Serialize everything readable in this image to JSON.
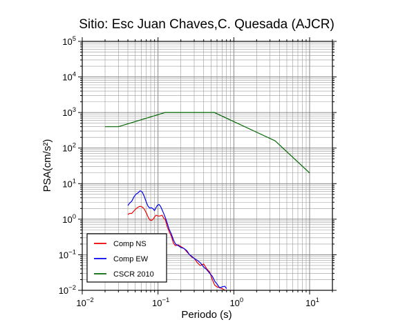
{
  "chart_data": {
    "type": "line",
    "title": "Sitio: Esc Juan Chaves,C. Quesada (AJCR)",
    "xlabel": "Periodo (s)",
    "ylabel": "PSA(cm/s²)",
    "x_scale": "log",
    "y_scale": "log",
    "xlim": [
      0.01,
      20
    ],
    "ylim": [
      0.01,
      100000
    ],
    "grid": true,
    "legend_position": "bottom-left",
    "x_ticks": [
      {
        "value": 0.01,
        "base": "10",
        "exp": "−2"
      },
      {
        "value": 0.1,
        "base": "10",
        "exp": "−1"
      },
      {
        "value": 1,
        "base": "10",
        "exp": "0"
      },
      {
        "value": 10,
        "base": "10",
        "exp": "1"
      }
    ],
    "y_ticks": [
      {
        "value": 0.01,
        "base": "10",
        "exp": "−2"
      },
      {
        "value": 0.1,
        "base": "10",
        "exp": "−1"
      },
      {
        "value": 1,
        "base": "10",
        "exp": "0"
      },
      {
        "value": 10,
        "base": "10",
        "exp": "1"
      },
      {
        "value": 100,
        "base": "10",
        "exp": "2"
      },
      {
        "value": 1000,
        "base": "10",
        "exp": "3"
      },
      {
        "value": 10000,
        "base": "10",
        "exp": "4"
      },
      {
        "value": 100000,
        "base": "10",
        "exp": "5"
      }
    ],
    "series": [
      {
        "name": "Comp NS",
        "color": "#ee0000",
        "points": [
          [
            0.04,
            1.35
          ],
          [
            0.042,
            1.45
          ],
          [
            0.045,
            1.45
          ],
          [
            0.048,
            1.7
          ],
          [
            0.051,
            1.95
          ],
          [
            0.055,
            2.2
          ],
          [
            0.058,
            2.3
          ],
          [
            0.062,
            2.2
          ],
          [
            0.066,
            1.9
          ],
          [
            0.07,
            1.5
          ],
          [
            0.074,
            1.15
          ],
          [
            0.078,
            0.95
          ],
          [
            0.082,
            0.92
          ],
          [
            0.086,
            1.0
          ],
          [
            0.09,
            1.15
          ],
          [
            0.094,
            1.3
          ],
          [
            0.098,
            1.25
          ],
          [
            0.103,
            1.22
          ],
          [
            0.108,
            1.25
          ],
          [
            0.113,
            1.3
          ],
          [
            0.118,
            1.1
          ],
          [
            0.125,
            0.95
          ],
          [
            0.133,
            0.6
          ],
          [
            0.14,
            0.45
          ],
          [
            0.15,
            0.33
          ],
          [
            0.16,
            0.21
          ],
          [
            0.17,
            0.18
          ],
          [
            0.185,
            0.19
          ],
          [
            0.2,
            0.17
          ],
          [
            0.22,
            0.15
          ],
          [
            0.24,
            0.12
          ],
          [
            0.26,
            0.1
          ],
          [
            0.28,
            0.085
          ],
          [
            0.3,
            0.08
          ],
          [
            0.33,
            0.06
          ],
          [
            0.36,
            0.05
          ],
          [
            0.4,
            0.055
          ],
          [
            0.44,
            0.04
          ],
          [
            0.48,
            0.033
          ],
          [
            0.52,
            0.02
          ],
          [
            0.56,
            0.014
          ],
          [
            0.6,
            0.0125
          ],
          [
            0.65,
            0.0118
          ],
          [
            0.7,
            0.0112
          ],
          [
            0.76,
            0.0102
          ]
        ]
      },
      {
        "name": "Comp EW",
        "color": "#0000ee",
        "points": [
          [
            0.04,
            2.4
          ],
          [
            0.042,
            2.8
          ],
          [
            0.045,
            3.2
          ],
          [
            0.048,
            4.2
          ],
          [
            0.051,
            5.0
          ],
          [
            0.055,
            5.6
          ],
          [
            0.058,
            6.3
          ],
          [
            0.062,
            5.8
          ],
          [
            0.066,
            4.3
          ],
          [
            0.07,
            3.0
          ],
          [
            0.074,
            2.3
          ],
          [
            0.078,
            2.05
          ],
          [
            0.082,
            2.1
          ],
          [
            0.086,
            1.95
          ],
          [
            0.09,
            1.75
          ],
          [
            0.094,
            2.1
          ],
          [
            0.098,
            2.45
          ],
          [
            0.103,
            2.6
          ],
          [
            0.108,
            2.3
          ],
          [
            0.113,
            1.85
          ],
          [
            0.118,
            1.5
          ],
          [
            0.125,
            1.1
          ],
          [
            0.133,
            0.75
          ],
          [
            0.14,
            0.52
          ],
          [
            0.15,
            0.38
          ],
          [
            0.16,
            0.26
          ],
          [
            0.17,
            0.2
          ],
          [
            0.185,
            0.18
          ],
          [
            0.2,
            0.16
          ],
          [
            0.22,
            0.15
          ],
          [
            0.24,
            0.13
          ],
          [
            0.26,
            0.1
          ],
          [
            0.28,
            0.09
          ],
          [
            0.3,
            0.078
          ],
          [
            0.33,
            0.07
          ],
          [
            0.36,
            0.06
          ],
          [
            0.4,
            0.045
          ],
          [
            0.44,
            0.038
          ],
          [
            0.48,
            0.03
          ],
          [
            0.52,
            0.025
          ],
          [
            0.56,
            0.018
          ],
          [
            0.6,
            0.015
          ],
          [
            0.65,
            0.0118
          ],
          [
            0.7,
            0.0125
          ],
          [
            0.76,
            0.013
          ],
          [
            0.8,
            0.0112
          ]
        ]
      },
      {
        "name": "CSCR 2010",
        "color": "#006600",
        "points": [
          [
            0.02,
            400
          ],
          [
            0.03,
            400
          ],
          [
            0.125,
            1000
          ],
          [
            0.55,
            1000
          ],
          [
            3.5,
            160
          ],
          [
            10.0,
            20
          ]
        ]
      }
    ]
  }
}
